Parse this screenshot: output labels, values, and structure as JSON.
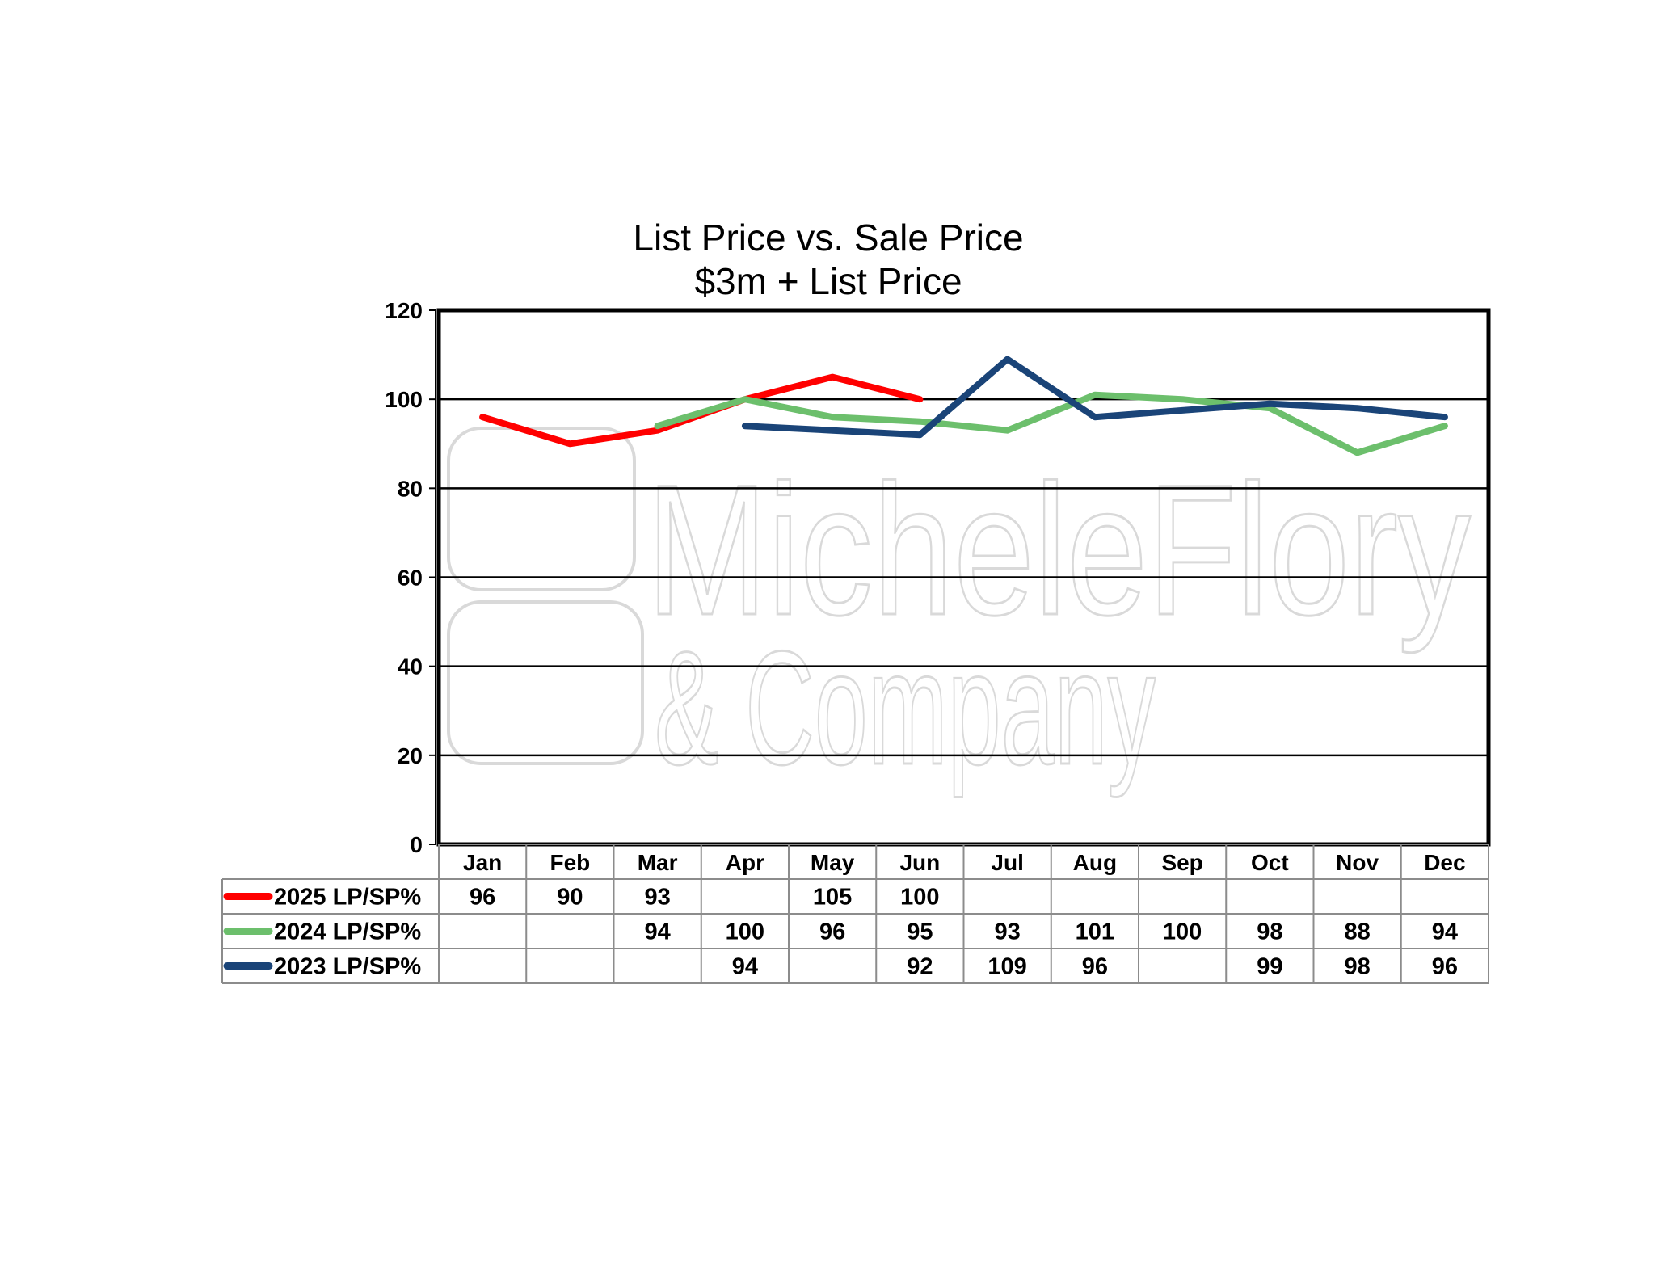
{
  "chart_data": {
    "type": "line",
    "title": "List Price vs. Sale Price",
    "subtitle": "$3m + List Price",
    "categories": [
      "Jan",
      "Feb",
      "Mar",
      "Apr",
      "May",
      "Jun",
      "Jul",
      "Aug",
      "Sep",
      "Oct",
      "Nov",
      "Dec"
    ],
    "ylim": [
      0,
      120
    ],
    "yticks": [
      0,
      20,
      40,
      60,
      80,
      100,
      120
    ],
    "grid": true,
    "legend": "data-table-left",
    "series": [
      {
        "name": "2025 LP/SP%",
        "color": "#ff0000",
        "values": [
          96,
          90,
          93,
          null,
          105,
          100,
          null,
          null,
          null,
          null,
          null,
          null
        ],
        "line_values": [
          96,
          90,
          93,
          100,
          105,
          100,
          null,
          null,
          null,
          null,
          null,
          null
        ]
      },
      {
        "name": "2024 LP/SP%",
        "color": "#6cbf6c",
        "values": [
          null,
          null,
          94,
          100,
          96,
          95,
          93,
          101,
          100,
          98,
          88,
          94
        ],
        "line_values": [
          null,
          null,
          94,
          100,
          96,
          95,
          93,
          101,
          100,
          98,
          88,
          94
        ]
      },
      {
        "name": "2023 LP/SP%",
        "color": "#1a4478",
        "values": [
          null,
          null,
          null,
          94,
          null,
          92,
          109,
          96,
          null,
          99,
          98,
          96
        ],
        "line_values": [
          null,
          null,
          null,
          94,
          93,
          92,
          109,
          96,
          97.5,
          99,
          98,
          96
        ]
      }
    ]
  },
  "watermark": {
    "line1": "MicheleFlory",
    "line2": "& Company"
  }
}
